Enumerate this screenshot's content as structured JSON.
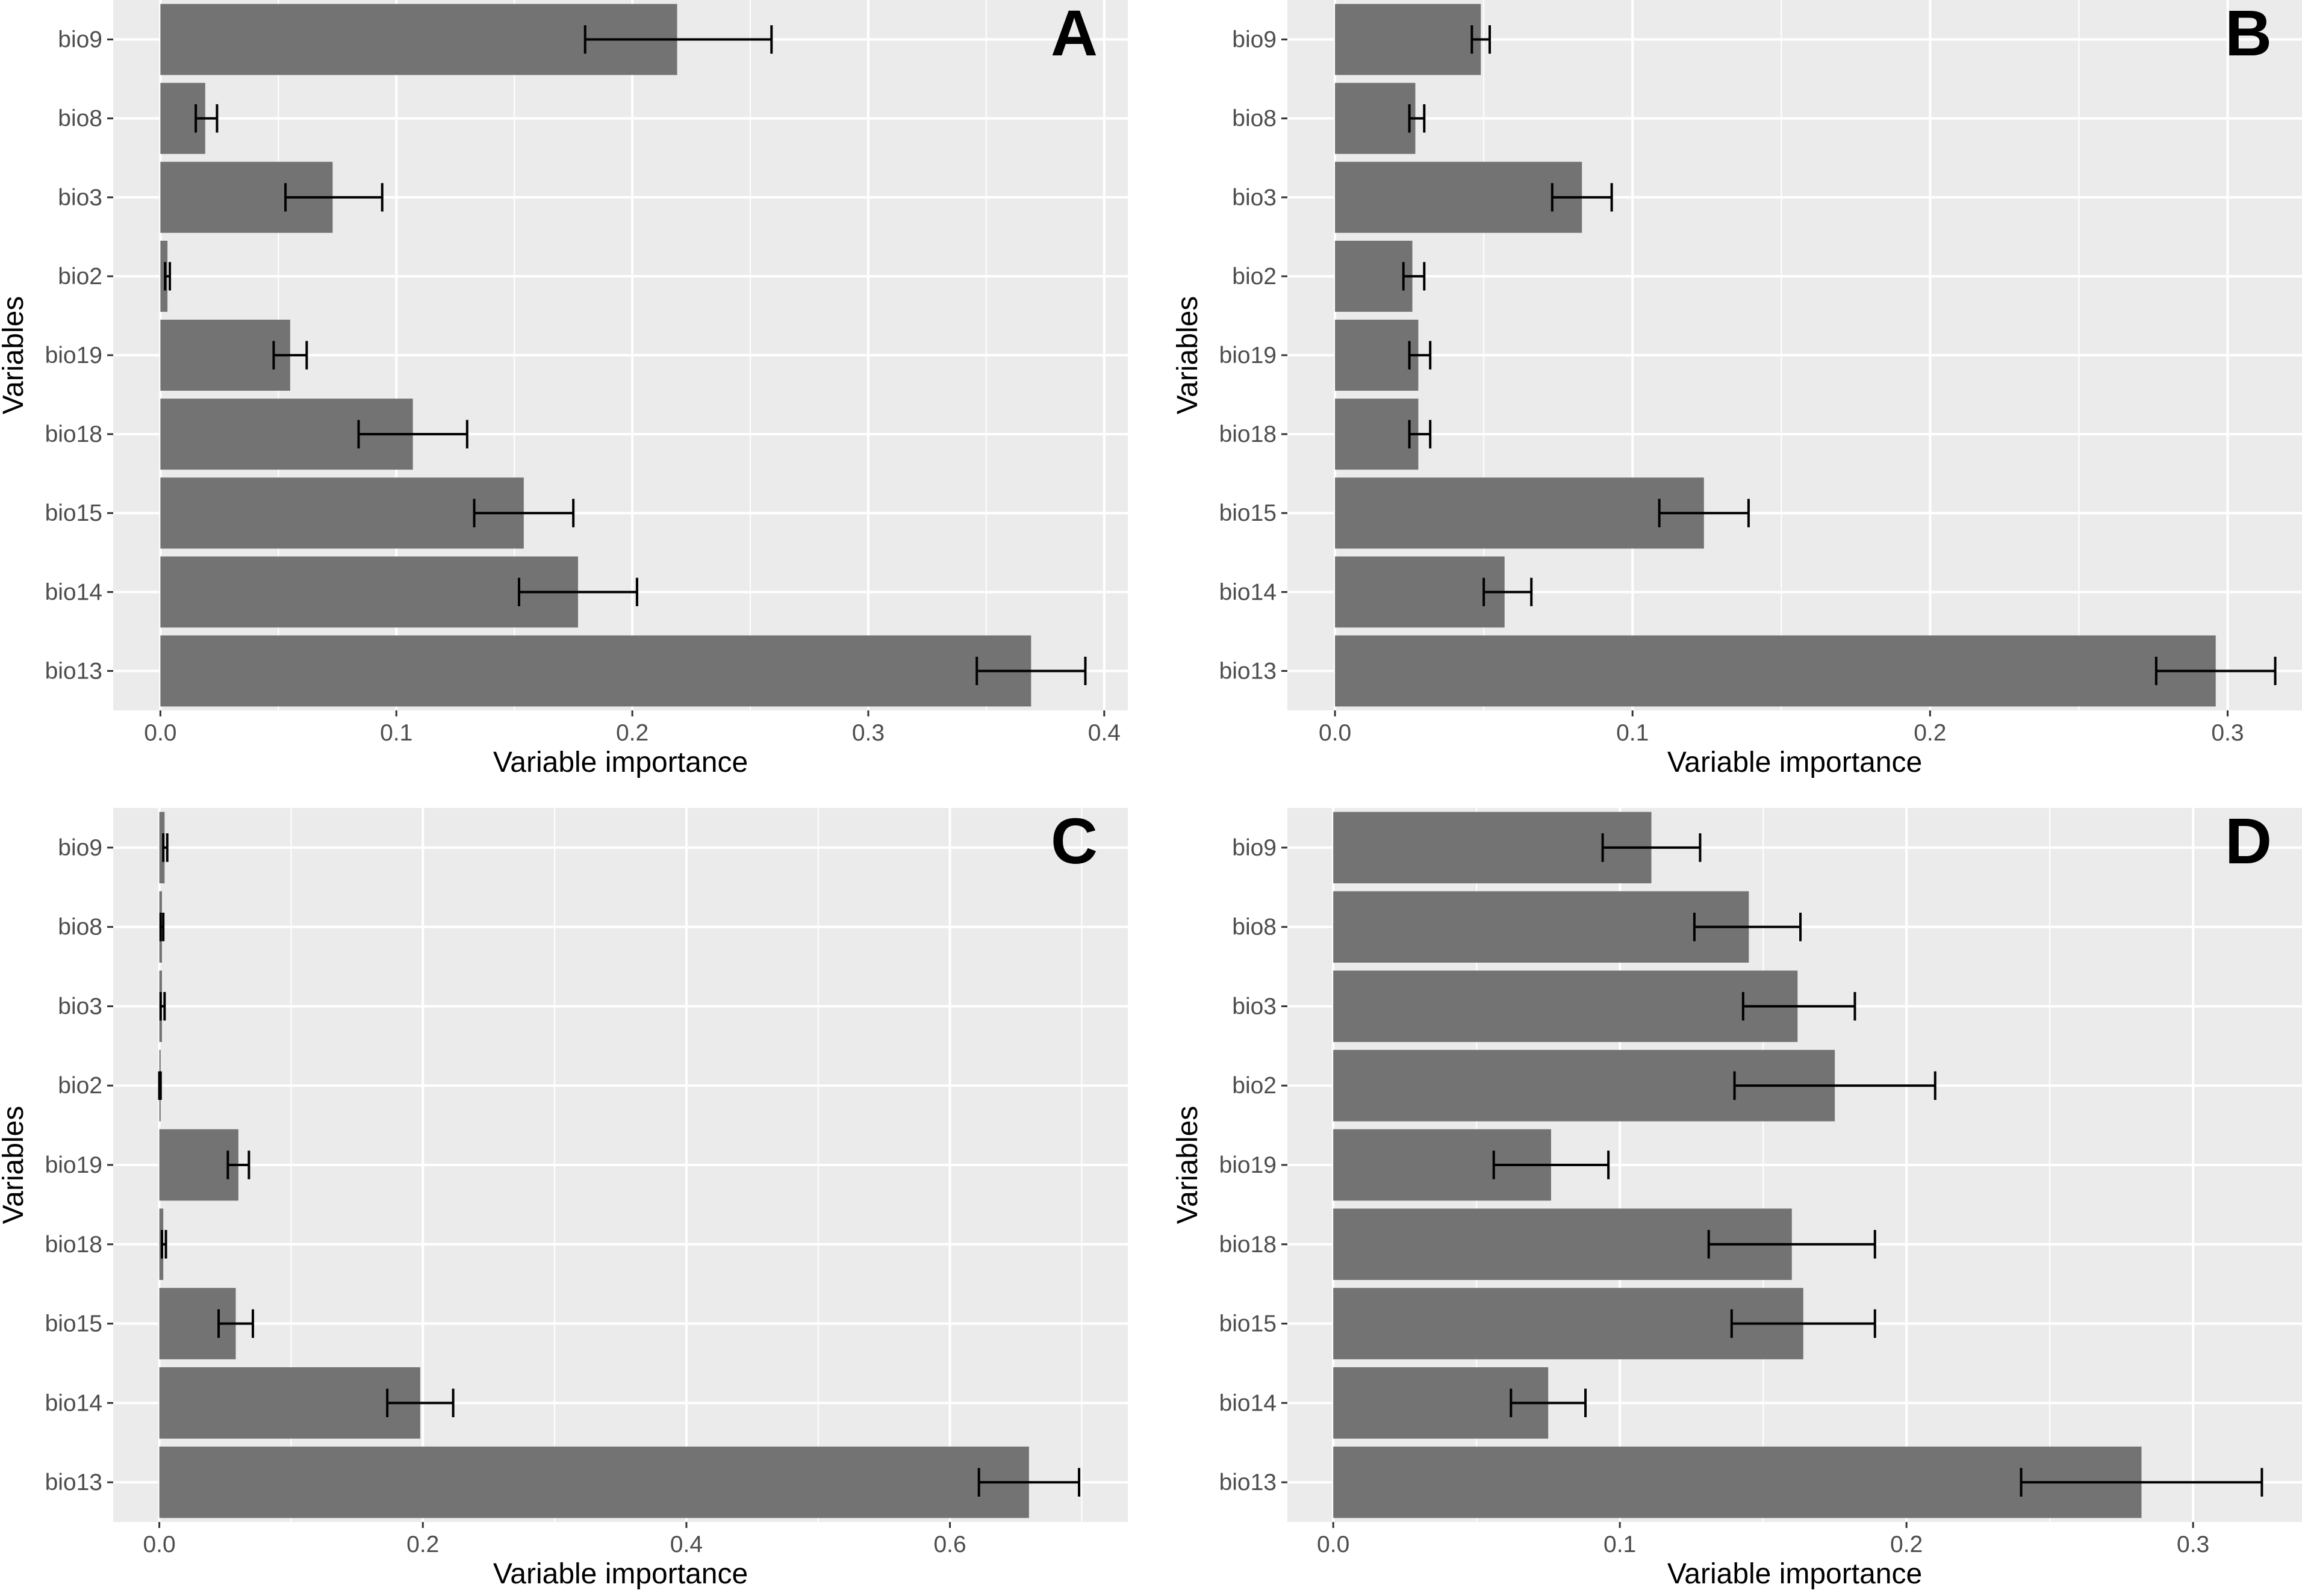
{
  "chart_data": [
    {
      "type": "bar",
      "orientation": "horizontal",
      "panel_label": "A",
      "xlabel": "Variable importance",
      "ylabel": "Variables",
      "xlim": [
        -0.02,
        0.41
      ],
      "xticks": [
        0.0,
        0.1,
        0.2,
        0.3,
        0.4
      ],
      "xtick_labels": [
        "0.0",
        "0.1",
        "0.2",
        "0.3",
        "0.4"
      ],
      "categories": [
        "bio9",
        "bio8",
        "bio3",
        "bio2",
        "bio19",
        "bio18",
        "bio15",
        "bio14",
        "bio13"
      ],
      "values": [
        0.219,
        0.019,
        0.073,
        0.003,
        0.055,
        0.107,
        0.154,
        0.177,
        0.369
      ],
      "error_low": [
        0.18,
        0.015,
        0.053,
        0.002,
        0.048,
        0.084,
        0.133,
        0.152,
        0.346
      ],
      "error_high": [
        0.259,
        0.024,
        0.094,
        0.004,
        0.062,
        0.13,
        0.175,
        0.202,
        0.392
      ]
    },
    {
      "type": "bar",
      "orientation": "horizontal",
      "panel_label": "B",
      "xlabel": "Variable importance",
      "ylabel": "Variables",
      "xlim": [
        -0.016,
        0.325
      ],
      "xticks": [
        0.0,
        0.1,
        0.2,
        0.3
      ],
      "xtick_labels": [
        "0.0",
        "0.1",
        "0.2",
        "0.3"
      ],
      "categories": [
        "bio9",
        "bio8",
        "bio3",
        "bio2",
        "bio19",
        "bio18",
        "bio15",
        "bio14",
        "bio13"
      ],
      "values": [
        0.049,
        0.027,
        0.083,
        0.026,
        0.028,
        0.028,
        0.124,
        0.057,
        0.296
      ],
      "error_low": [
        0.046,
        0.025,
        0.073,
        0.023,
        0.025,
        0.025,
        0.109,
        0.05,
        0.276
      ],
      "error_high": [
        0.052,
        0.03,
        0.093,
        0.03,
        0.032,
        0.032,
        0.139,
        0.066,
        0.316
      ]
    },
    {
      "type": "bar",
      "orientation": "horizontal",
      "panel_label": "C",
      "xlabel": "Variable importance",
      "ylabel": "Variables",
      "xlim": [
        -0.035,
        0.735
      ],
      "xticks": [
        0.0,
        0.2,
        0.4,
        0.6
      ],
      "xtick_labels": [
        "0.0",
        "0.2",
        "0.4",
        "0.6"
      ],
      "categories": [
        "bio9",
        "bio8",
        "bio3",
        "bio2",
        "bio19",
        "bio18",
        "bio15",
        "bio14",
        "bio13"
      ],
      "values": [
        0.004,
        0.002,
        0.002,
        0.001,
        0.06,
        0.003,
        0.058,
        0.198,
        0.66
      ],
      "error_low": [
        0.003,
        0.001,
        0.001,
        0.0,
        0.052,
        0.002,
        0.045,
        0.173,
        0.622
      ],
      "error_high": [
        0.006,
        0.003,
        0.004,
        0.001,
        0.068,
        0.005,
        0.071,
        0.223,
        0.698
      ]
    },
    {
      "type": "bar",
      "orientation": "horizontal",
      "panel_label": "D",
      "xlabel": "Variable importance",
      "ylabel": "Variables",
      "xlim": [
        -0.016,
        0.338
      ],
      "xticks": [
        0.0,
        0.1,
        0.2,
        0.3
      ],
      "xtick_labels": [
        "0.0",
        "0.1",
        "0.2",
        "0.3"
      ],
      "categories": [
        "bio9",
        "bio8",
        "bio3",
        "bio2",
        "bio19",
        "bio18",
        "bio15",
        "bio14",
        "bio13"
      ],
      "values": [
        0.111,
        0.145,
        0.162,
        0.175,
        0.076,
        0.16,
        0.164,
        0.075,
        0.282
      ],
      "error_low": [
        0.094,
        0.126,
        0.143,
        0.14,
        0.056,
        0.131,
        0.139,
        0.062,
        0.24
      ],
      "error_high": [
        0.128,
        0.163,
        0.182,
        0.21,
        0.096,
        0.189,
        0.189,
        0.088,
        0.324
      ]
    }
  ]
}
